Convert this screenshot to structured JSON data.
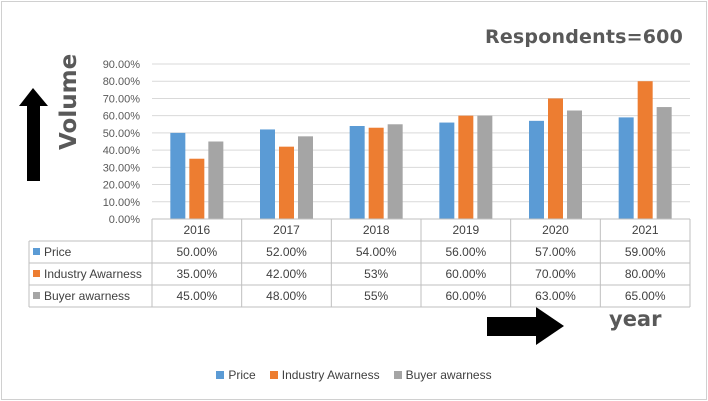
{
  "annotation": "Respondents=600",
  "chart_data": {
    "type": "bar",
    "ylabel": "Volume",
    "xlabel": "year",
    "ylim": [
      0,
      90
    ],
    "yticks": [
      "0.00%",
      "10.00%",
      "20.00%",
      "30.00%",
      "40.00%",
      "50.00%",
      "60.00%",
      "70.00%",
      "80.00%",
      "90.00%"
    ],
    "categories": [
      "2016",
      "2017",
      "2018",
      "2019",
      "2020",
      "2021"
    ],
    "grid": true,
    "legend_position": "bottom",
    "series": [
      {
        "name": "Price",
        "color": "#5b9bd5",
        "values": [
          50,
          52,
          54,
          56,
          57,
          59
        ],
        "labels": [
          "50.00%",
          "52.00%",
          "54.00%",
          "56.00%",
          "57.00%",
          "59.00%"
        ]
      },
      {
        "name": "Industry Awarness",
        "color": "#ed7d31",
        "values": [
          35,
          42,
          53,
          60,
          70,
          80
        ],
        "labels": [
          "35.00%",
          "42.00%",
          "53%",
          "60.00%",
          "70.00%",
          "80.00%"
        ]
      },
      {
        "name": "Buyer awarness",
        "color": "#a5a5a5",
        "values": [
          45,
          48,
          55,
          60,
          63,
          65
        ],
        "labels": [
          "45.00%",
          "48.00%",
          "55%",
          "60.00%",
          "63.00%",
          "65.00%"
        ]
      }
    ]
  },
  "icons": {
    "up_arrow": "up-arrow-icon",
    "right_arrow": "right-arrow-icon"
  }
}
